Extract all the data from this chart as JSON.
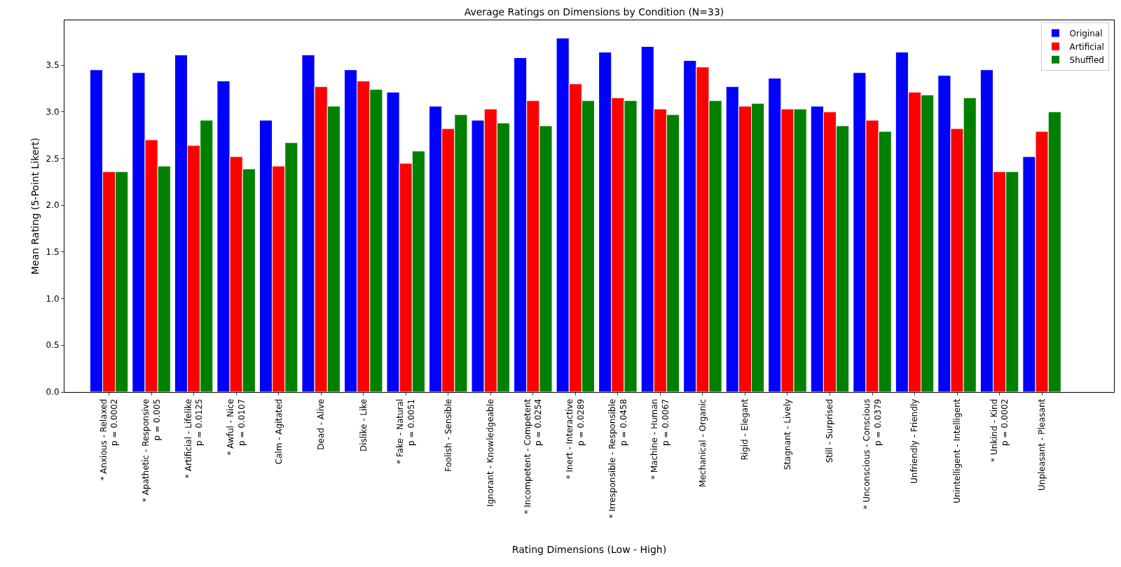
{
  "chart_data": {
    "type": "bar",
    "title": "Average Ratings on Dimensions by Condition (N=33)",
    "xlabel": "Rating Dimensions (Low - High)",
    "ylabel": "Mean Rating (5-Point Likert)",
    "categories": [
      "* Anxious - Relaxed\np = 0.0002",
      "* Apathetic - Responsive\np = 0.005",
      "* Artificial - Lifelike\np = 0.0125",
      "* Awful - Nice\np = 0.0107",
      "Calm - Agitated",
      "Dead - Alive",
      "Dislike - Like",
      "* Fake - Natural\np = 0.0051",
      "Foolish - Sensible",
      "Ignorant - Knowledgeable",
      "* Incompetent - Competent\np = 0.0254",
      "* Inert - Interactive\np = 0.0289",
      "* Irresponsible - Responsible\np = 0.0458",
      "* Machine - Human\np = 0.0067",
      "Mechanical - Organic",
      "Rigid - Elegant",
      "Stagnant - Lively",
      "Still - Surprised",
      "* Unconscious - Conscious\np = 0.0379",
      "Unfriendly - Friendly",
      "Unintelligent - Intelligent",
      "* Unkind - Kind\np = 0.0002",
      "Unpleasant - Pleasant"
    ],
    "series": [
      {
        "name": "Original",
        "color": "#0000ff",
        "values": [
          3.45,
          3.42,
          3.61,
          3.33,
          2.91,
          3.61,
          3.45,
          3.21,
          3.06,
          2.91,
          3.58,
          3.79,
          3.64,
          3.7,
          3.55,
          3.27,
          3.36,
          3.06,
          3.42,
          3.64,
          3.39,
          3.45,
          2.52
        ]
      },
      {
        "name": "Artificial",
        "color": "#ff0000",
        "values": [
          2.36,
          2.7,
          2.64,
          2.52,
          2.42,
          3.27,
          3.33,
          2.45,
          2.82,
          3.03,
          3.12,
          3.3,
          3.15,
          3.03,
          3.48,
          3.06,
          3.03,
          3.0,
          2.91,
          3.21,
          2.82,
          2.36,
          2.79
        ]
      },
      {
        "name": "Shuffled",
        "color": "#008000",
        "values": [
          2.36,
          2.42,
          2.91,
          2.39,
          2.67,
          3.06,
          3.24,
          2.58,
          2.97,
          2.88,
          2.85,
          3.12,
          3.12,
          2.97,
          3.12,
          3.09,
          3.03,
          2.85,
          2.79,
          3.18,
          3.15,
          2.36,
          3.0
        ]
      }
    ],
    "ylim": [
      0,
      3.98
    ],
    "yticks": [
      {
        "value": 0,
        "label": "0.0"
      },
      0.5,
      {
        "value": 1,
        "label": "1.0"
      },
      1.5,
      {
        "value": 2,
        "label": "2.0"
      },
      2.5,
      {
        "value": 3,
        "label": "3.0"
      },
      3.5
    ],
    "legend": "top right"
  }
}
